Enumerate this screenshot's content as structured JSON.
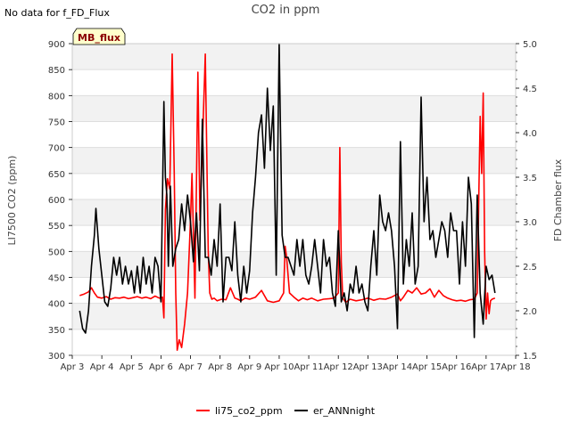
{
  "chart_data": {
    "type": "line",
    "title": "CO2 in ppm",
    "corner_note": "No data for f_FD_Flux",
    "badge": "MB_flux",
    "ylabel": "LI7500 CO2 (ppm)",
    "y2label": "FD Chamber flux",
    "xlim": [
      3,
      18
    ],
    "ylim": [
      300,
      900
    ],
    "y2lim": [
      1.5,
      5.0
    ],
    "x_ticks": [
      {
        "v": 3,
        "label": "Apr 3"
      },
      {
        "v": 4,
        "label": "Apr 4"
      },
      {
        "v": 5,
        "label": "Apr 5"
      },
      {
        "v": 6,
        "label": "Apr 6"
      },
      {
        "v": 7,
        "label": "Apr 7"
      },
      {
        "v": 8,
        "label": "Apr 8"
      },
      {
        "v": 9,
        "label": "Apr 9"
      },
      {
        "v": 10,
        "label": "Apr 10"
      },
      {
        "v": 11,
        "label": "Apr 11"
      },
      {
        "v": 12,
        "label": "Apr 12"
      },
      {
        "v": 13,
        "label": "Apr 13"
      },
      {
        "v": 14,
        "label": "Apr 14"
      },
      {
        "v": 15,
        "label": "Apr 15"
      },
      {
        "v": 16,
        "label": "Apr 16"
      },
      {
        "v": 17,
        "label": "Apr 17"
      },
      {
        "v": 18,
        "label": "Apr 18"
      }
    ],
    "y_ticks": [
      {
        "v": 300,
        "label": "300"
      },
      {
        "v": 350,
        "label": "350"
      },
      {
        "v": 400,
        "label": "400"
      },
      {
        "v": 450,
        "label": "450"
      },
      {
        "v": 500,
        "label": "500"
      },
      {
        "v": 550,
        "label": "550"
      },
      {
        "v": 600,
        "label": "600"
      },
      {
        "v": 650,
        "label": "650"
      },
      {
        "v": 700,
        "label": "700"
      },
      {
        "v": 750,
        "label": "750"
      },
      {
        "v": 800,
        "label": "800"
      },
      {
        "v": 850,
        "label": "850"
      },
      {
        "v": 900,
        "label": "900"
      }
    ],
    "y2_ticks": [
      {
        "v": 1.5,
        "label": "1.5"
      },
      {
        "v": 2.0,
        "label": "2.0"
      },
      {
        "v": 2.5,
        "label": "2.5"
      },
      {
        "v": 3.0,
        "label": "3.0"
      },
      {
        "v": 3.5,
        "label": "3.5"
      },
      {
        "v": 4.0,
        "label": "4.0"
      },
      {
        "v": 4.5,
        "label": "4.5"
      },
      {
        "v": 5.0,
        "label": "5.0"
      }
    ],
    "grid": true,
    "legend_position": "bottom-center",
    "series": [
      {
        "name": "li75_co2_ppm",
        "axis": "left",
        "color": "#ff0000",
        "x": [
          3.25,
          3.4,
          3.55,
          3.65,
          3.75,
          3.85,
          4.0,
          4.15,
          4.3,
          4.45,
          4.6,
          4.75,
          4.9,
          5.05,
          5.2,
          5.35,
          5.5,
          5.65,
          5.8,
          5.95,
          6.05,
          6.1,
          6.15,
          6.22,
          6.3,
          6.38,
          6.45,
          6.5,
          6.55,
          6.62,
          6.7,
          6.8,
          6.9,
          7.0,
          7.05,
          7.15,
          7.25,
          7.32,
          7.4,
          7.5,
          7.6,
          7.65,
          7.72,
          7.8,
          7.9,
          8.05,
          8.2,
          8.35,
          8.5,
          8.6,
          8.7,
          8.85,
          9.0,
          9.2,
          9.4,
          9.6,
          9.8,
          10.0,
          10.15,
          10.2,
          10.25,
          10.35,
          10.5,
          10.65,
          10.8,
          10.95,
          11.1,
          11.3,
          11.5,
          11.7,
          11.85,
          12.0,
          12.05,
          12.1,
          12.15,
          12.25,
          12.4,
          12.6,
          12.8,
          13.0,
          13.2,
          13.4,
          13.6,
          13.8,
          14.0,
          14.1,
          14.2,
          14.35,
          14.5,
          14.65,
          14.8,
          14.95,
          15.1,
          15.25,
          15.4,
          15.55,
          15.7,
          15.85,
          16.0,
          16.15,
          16.3,
          16.45,
          16.6,
          16.7,
          16.75,
          16.8,
          16.85,
          16.9,
          16.95,
          17.0,
          17.05,
          17.1,
          17.15,
          17.2,
          17.3
        ],
        "y": [
          415,
          418,
          422,
          430,
          420,
          412,
          410,
          413,
          408,
          411,
          410,
          412,
          409,
          411,
          413,
          410,
          412,
          409,
          414,
          410,
          412,
          372,
          580,
          640,
          620,
          880,
          650,
          420,
          310,
          330,
          315,
          360,
          420,
          560,
          650,
          410,
          845,
          560,
          700,
          880,
          500,
          420,
          408,
          410,
          405,
          408,
          407,
          430,
          410,
          408,
          405,
          410,
          408,
          412,
          425,
          405,
          402,
          405,
          420,
          510,
          490,
          420,
          412,
          405,
          410,
          407,
          410,
          405,
          408,
          409,
          410,
          420,
          700,
          480,
          410,
          402,
          408,
          405,
          407,
          410,
          406,
          409,
          408,
          412,
          418,
          405,
          412,
          425,
          420,
          430,
          418,
          420,
          428,
          412,
          425,
          415,
          410,
          407,
          405,
          406,
          404,
          407,
          408,
          420,
          600,
          760,
          650,
          805,
          500,
          370,
          420,
          380,
          405,
          408,
          410
        ]
      },
      {
        "name": "er_ANNnight",
        "axis": "right",
        "color": "#000000",
        "x": [
          3.25,
          3.35,
          3.45,
          3.55,
          3.65,
          3.75,
          3.8,
          3.9,
          4.0,
          4.1,
          4.2,
          4.3,
          4.4,
          4.5,
          4.6,
          4.7,
          4.8,
          4.9,
          5.0,
          5.1,
          5.2,
          5.3,
          5.4,
          5.5,
          5.6,
          5.7,
          5.8,
          5.9,
          6.0,
          6.1,
          6.15,
          6.2,
          6.25,
          6.32,
          6.4,
          6.5,
          6.6,
          6.7,
          6.8,
          6.9,
          7.0,
          7.1,
          7.2,
          7.3,
          7.4,
          7.5,
          7.6,
          7.7,
          7.8,
          7.9,
          8.0,
          8.1,
          8.2,
          8.3,
          8.4,
          8.5,
          8.6,
          8.7,
          8.8,
          8.9,
          9.0,
          9.1,
          9.2,
          9.3,
          9.4,
          9.5,
          9.6,
          9.7,
          9.8,
          9.9,
          10.0,
          10.1,
          10.2,
          10.3,
          10.4,
          10.5,
          10.6,
          10.7,
          10.8,
          10.9,
          11.0,
          11.1,
          11.2,
          11.3,
          11.4,
          11.5,
          11.6,
          11.7,
          11.8,
          11.9,
          12.0,
          12.1,
          12.2,
          12.3,
          12.4,
          12.5,
          12.6,
          12.7,
          12.8,
          12.9,
          13.0,
          13.1,
          13.2,
          13.3,
          13.4,
          13.5,
          13.6,
          13.7,
          13.8,
          13.9,
          14.0,
          14.1,
          14.2,
          14.3,
          14.4,
          14.5,
          14.6,
          14.7,
          14.8,
          14.9,
          15.0,
          15.1,
          15.2,
          15.3,
          15.4,
          15.5,
          15.6,
          15.7,
          15.8,
          15.9,
          16.0,
          16.1,
          16.2,
          16.3,
          16.4,
          16.5,
          16.6,
          16.7,
          16.8,
          16.9,
          17.0,
          17.1,
          17.2,
          17.3
        ],
        "y": [
          2.0,
          1.8,
          1.75,
          2.0,
          2.5,
          2.85,
          3.15,
          2.7,
          2.4,
          2.1,
          2.05,
          2.25,
          2.6,
          2.4,
          2.6,
          2.3,
          2.5,
          2.3,
          2.45,
          2.2,
          2.5,
          2.2,
          2.6,
          2.3,
          2.5,
          2.2,
          2.6,
          2.5,
          2.1,
          4.35,
          3.5,
          3.3,
          2.5,
          3.4,
          2.5,
          2.7,
          2.8,
          3.2,
          2.9,
          3.3,
          3.0,
          2.55,
          3.1,
          2.45,
          4.15,
          2.6,
          2.6,
          2.4,
          2.8,
          2.5,
          3.2,
          2.1,
          2.6,
          2.6,
          2.45,
          3.0,
          2.4,
          2.1,
          2.5,
          2.2,
          2.45,
          3.1,
          3.5,
          4.0,
          4.2,
          3.6,
          4.5,
          3.8,
          4.3,
          2.4,
          5.0,
          2.85,
          2.6,
          2.6,
          2.5,
          2.4,
          2.8,
          2.5,
          2.8,
          2.4,
          2.3,
          2.5,
          2.8,
          2.5,
          2.2,
          2.8,
          2.5,
          2.6,
          2.2,
          2.05,
          2.9,
          2.1,
          2.2,
          2.0,
          2.3,
          2.2,
          2.5,
          2.2,
          2.3,
          2.1,
          2.0,
          2.5,
          2.9,
          2.4,
          3.3,
          3.0,
          2.9,
          3.1,
          2.9,
          2.5,
          1.8,
          3.9,
          2.3,
          2.8,
          2.5,
          3.1,
          2.3,
          2.5,
          4.4,
          3.0,
          3.5,
          2.8,
          2.9,
          2.6,
          2.8,
          3.0,
          2.9,
          2.6,
          3.1,
          2.9,
          2.9,
          2.3,
          3.0,
          2.5,
          3.5,
          3.2,
          1.7,
          3.3,
          2.2,
          1.85,
          2.5,
          2.35,
          2.4,
          2.2
        ]
      }
    ]
  }
}
